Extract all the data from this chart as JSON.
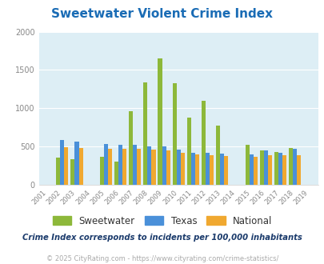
{
  "title": "Sweetwater Violent Crime Index",
  "subtitle": "Crime Index corresponds to incidents per 100,000 inhabitants",
  "footer": "© 2025 CityRating.com - https://www.cityrating.com/crime-statistics/",
  "years": [
    2001,
    2002,
    2003,
    2004,
    2005,
    2006,
    2007,
    2008,
    2009,
    2010,
    2011,
    2012,
    2013,
    2014,
    2015,
    2016,
    2017,
    2018,
    2019
  ],
  "sweetwater": [
    0,
    360,
    330,
    0,
    370,
    300,
    960,
    1340,
    1650,
    1330,
    880,
    1100,
    770,
    0,
    520,
    450,
    430,
    480,
    0
  ],
  "texas": [
    0,
    580,
    560,
    0,
    530,
    520,
    520,
    500,
    500,
    460,
    420,
    420,
    410,
    0,
    400,
    450,
    420,
    470,
    0
  ],
  "national": [
    0,
    490,
    480,
    0,
    470,
    470,
    470,
    460,
    450,
    420,
    400,
    390,
    380,
    0,
    370,
    390,
    390,
    390,
    0
  ],
  "sweetwater_color": "#8db83a",
  "texas_color": "#4a90d9",
  "national_color": "#f0a830",
  "bg_color": "#ddeef5",
  "title_color": "#1a6cb5",
  "subtitle_color": "#1a3a6b",
  "footer_color": "#aaaaaa",
  "footer_link_color": "#4a90d9",
  "ylim": [
    0,
    2000
  ],
  "yticks": [
    0,
    500,
    1000,
    1500,
    2000
  ]
}
